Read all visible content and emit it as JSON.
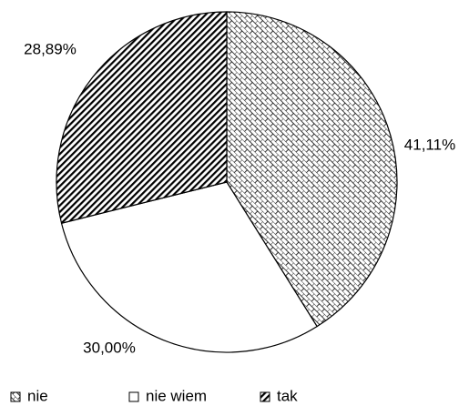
{
  "chart_data": {
    "type": "pie",
    "categories": [
      "nie",
      "nie wiem",
      "tak"
    ],
    "values": [
      41.11,
      30.0,
      28.89
    ],
    "value_labels": [
      "41,11%",
      "30,00%",
      "28,89%"
    ],
    "patterns": [
      "crosshatch",
      "none",
      "diagonal"
    ],
    "legend": "bottom"
  }
}
